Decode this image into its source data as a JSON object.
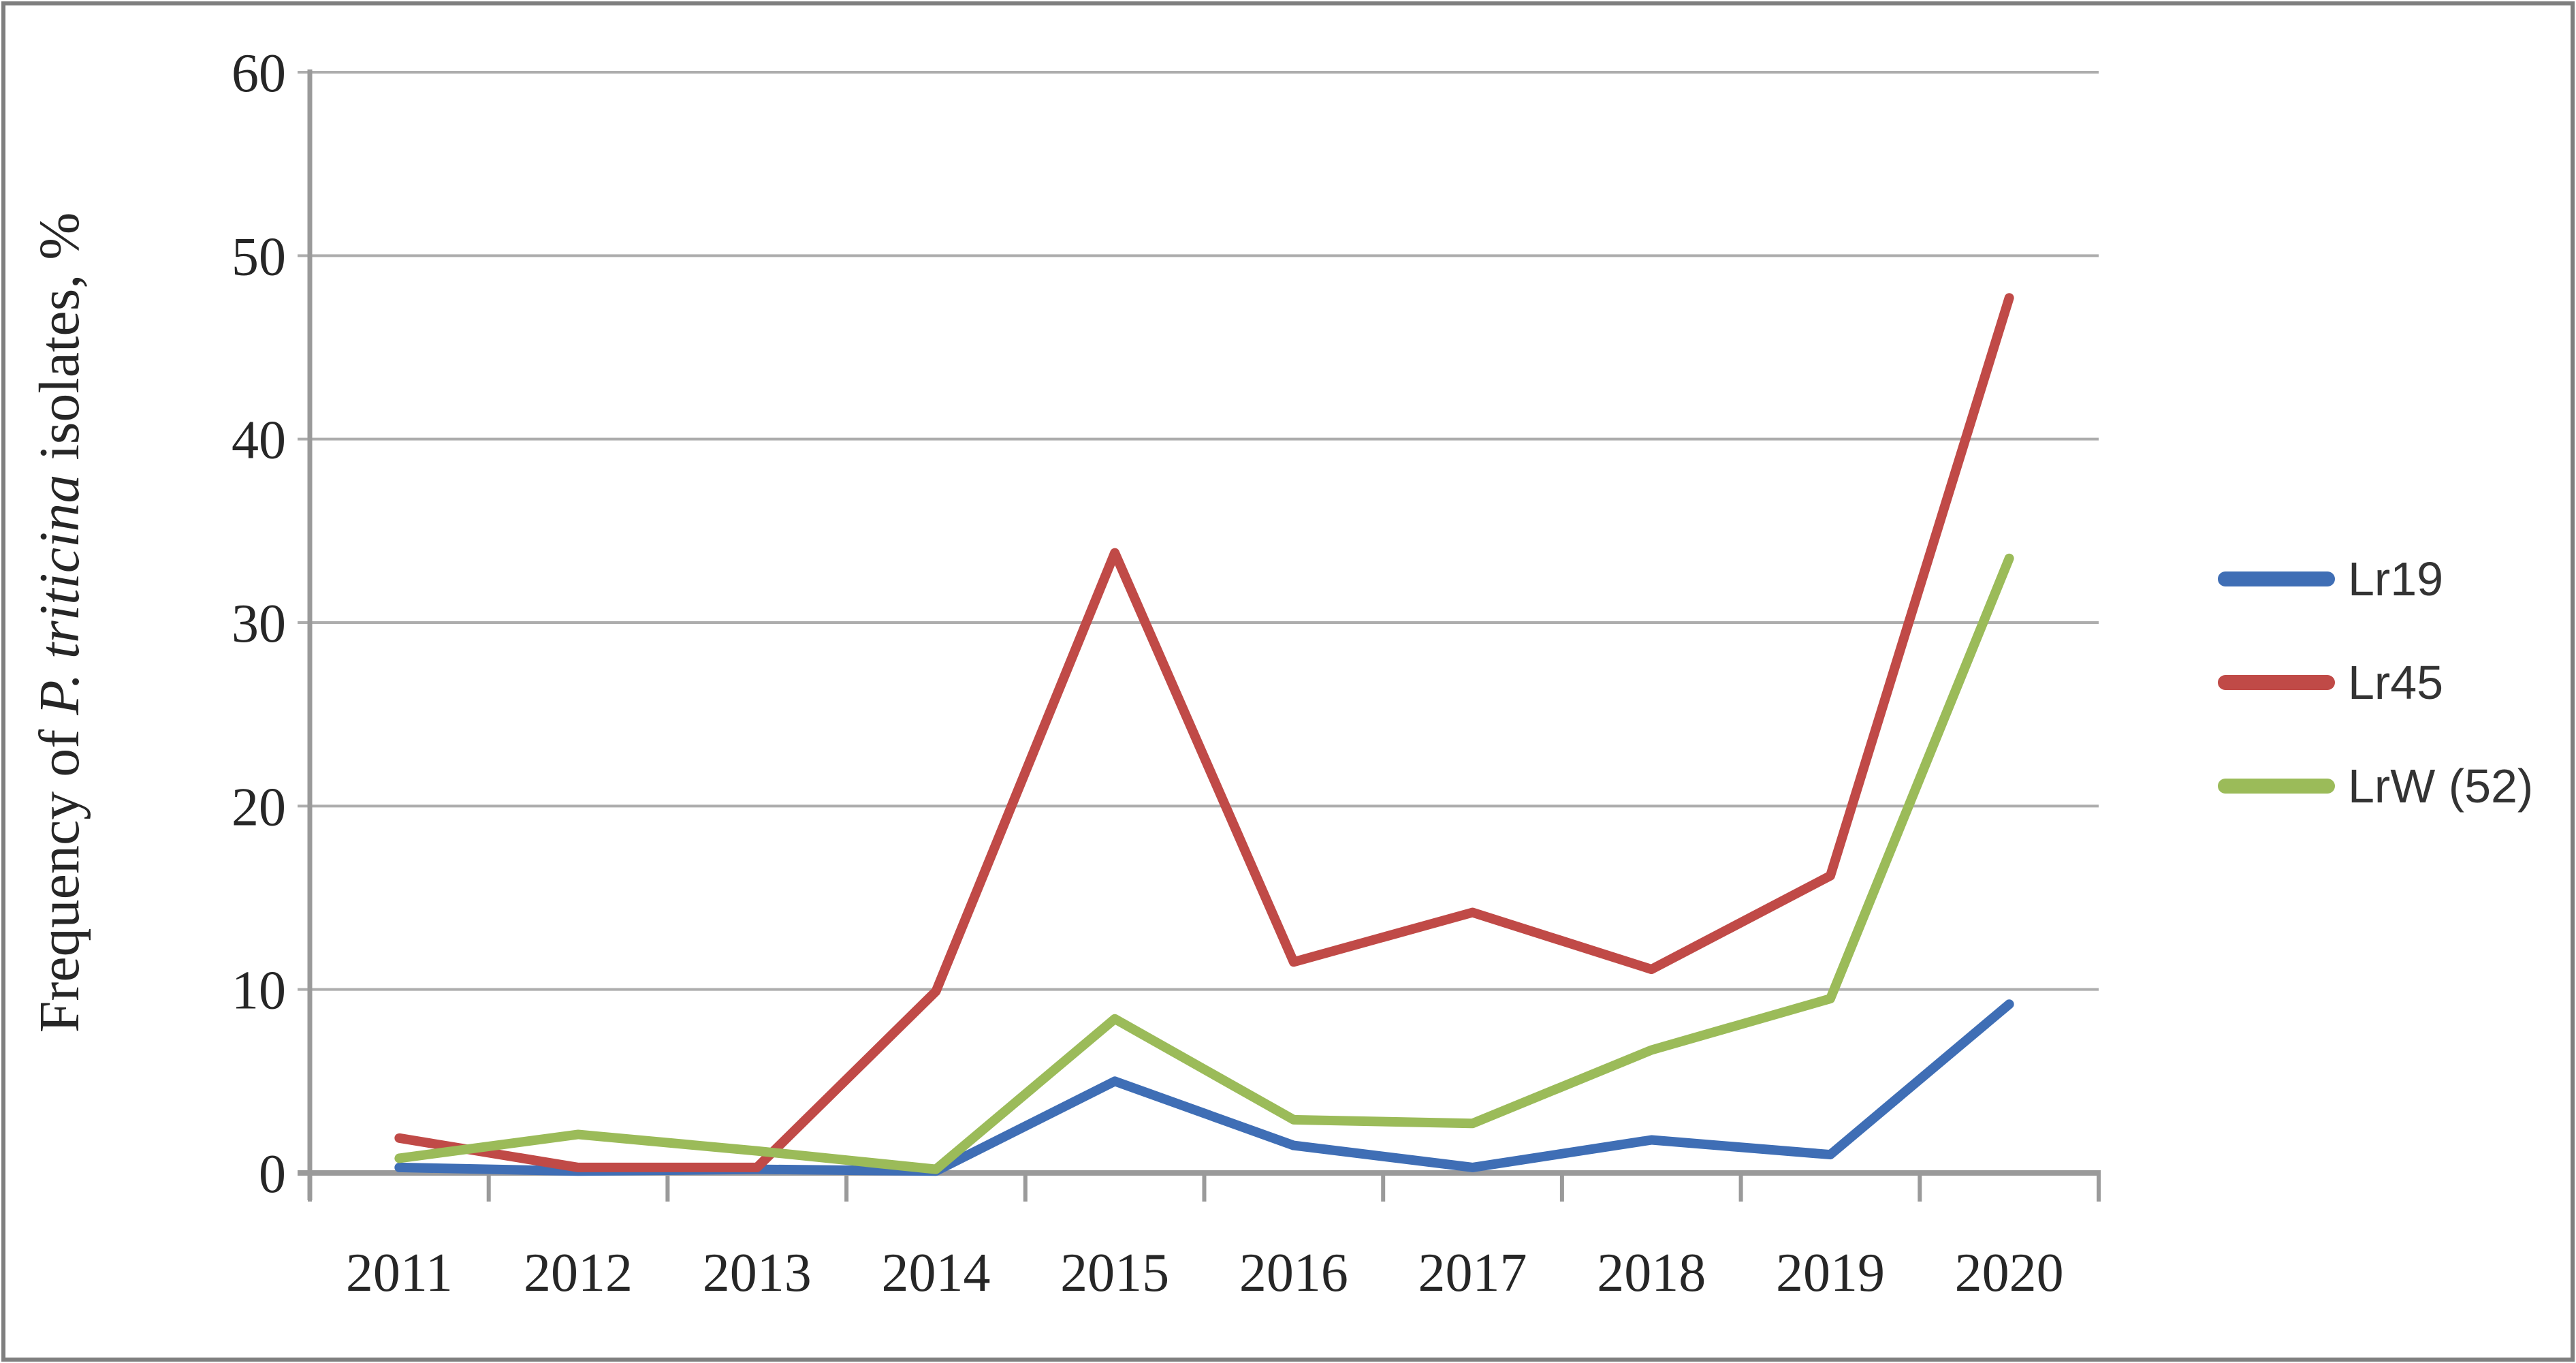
{
  "chart_data": {
    "type": "line",
    "title": "",
    "ylabel": "Frequency of P. triticina isolates, %",
    "ylabel_parts": [
      {
        "text": "Frequency of ",
        "italic": false
      },
      {
        "text": "P. triticina",
        "italic": true
      },
      {
        "text": " isolates, %",
        "italic": false
      }
    ],
    "xlabel": "",
    "categories": [
      "2011",
      "2012",
      "2013",
      "2014",
      "2015",
      "2016",
      "2017",
      "2018",
      "2019",
      "2020"
    ],
    "series": [
      {
        "name": "Lr19",
        "color": "#3F6EB5",
        "values": [
          0.3,
          0.1,
          0.2,
          0.1,
          5.0,
          1.5,
          0.3,
          1.8,
          1.0,
          9.2
        ]
      },
      {
        "name": "Lr45",
        "color": "#C04A47",
        "values": [
          1.9,
          0.3,
          0.3,
          9.9,
          33.8,
          11.5,
          14.2,
          11.1,
          16.2,
          47.7
        ]
      },
      {
        "name": "LrW (52)",
        "color": "#9BBB59",
        "values": [
          0.8,
          2.1,
          1.2,
          0.2,
          8.4,
          2.9,
          2.7,
          6.7,
          9.5,
          33.5
        ]
      }
    ],
    "y_ticks": [
      0,
      10,
      20,
      30,
      40,
      50,
      60
    ],
    "ylim": [
      0,
      60
    ],
    "grid": "horizontal",
    "legend_position": "right"
  },
  "colors": {
    "background": "#FFFFFF",
    "border": "#7F7F7F",
    "gridline": "#ADADAD",
    "axis": "#9A9A9A",
    "tick_text": "#262626"
  }
}
